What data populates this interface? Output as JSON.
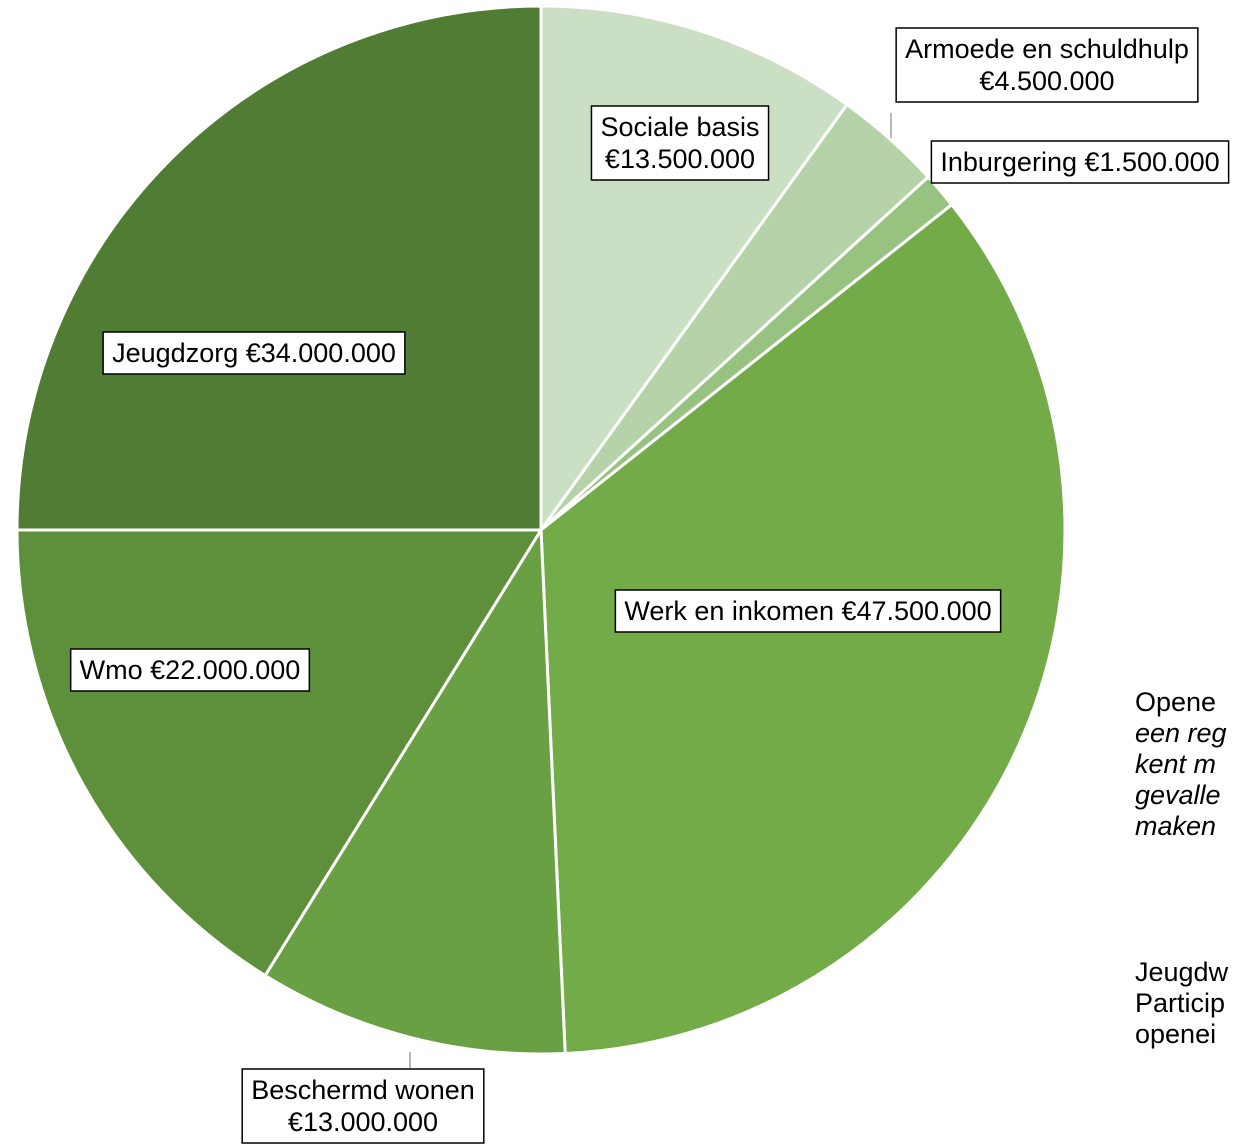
{
  "chart_data": {
    "type": "pie",
    "title": "",
    "currency": "€",
    "slices": [
      {
        "label": "Sociale basis",
        "value": 13500000,
        "display": "€13.500.000",
        "color": "#cadfc3"
      },
      {
        "label": "Armoede en schuldhulp",
        "value": 4500000,
        "display": "€4.500.000",
        "color": "#b5d2a8"
      },
      {
        "label": "Inburgering",
        "value": 1500000,
        "display": "€1.500.000",
        "color": "#97c27f"
      },
      {
        "label": "Werk en inkomen",
        "value": 47500000,
        "display": "€47.500.000",
        "color": "#72ab48"
      },
      {
        "label": "Beschermd wonen",
        "value": 13000000,
        "display": "€13.000.000",
        "color": "#69a043"
      },
      {
        "label": "Wmo",
        "value": 22000000,
        "display": "€22.000.000",
        "color": "#5e8f3a"
      },
      {
        "label": "Jeugdzorg",
        "value": 34000000,
        "display": "€34.000.000",
        "color": "#507c33"
      }
    ],
    "legend": "none",
    "label_style": "boxed-callouts"
  },
  "side_text": {
    "block1": [
      {
        "text": "Opene",
        "italic": false
      },
      {
        "text": "een reg",
        "italic": true
      },
      {
        "text": "kent m",
        "italic": true
      },
      {
        "text": "gevalle",
        "italic": true
      },
      {
        "text": "maken",
        "italic": true
      }
    ],
    "block2": [
      {
        "text": "Jeugdw",
        "italic": false
      },
      {
        "text": "Particip",
        "italic": false
      },
      {
        "text": "openei",
        "italic": false
      }
    ]
  }
}
